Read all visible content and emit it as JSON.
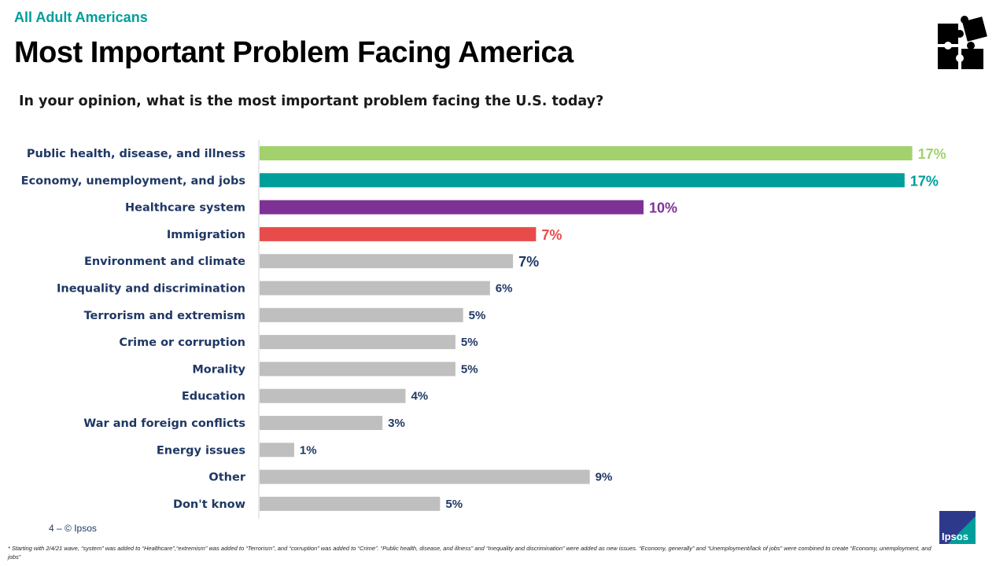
{
  "header": {
    "eyebrow": "All Adult Americans",
    "title": "Most Important Problem Facing America",
    "question": "In your opinion, what is the most important problem facing the U.S. today?"
  },
  "colors": {
    "green": "#a3d16e",
    "teal": "#009e9a",
    "purple": "#7e3295",
    "red": "#e84c4a",
    "gray": "#bfbfbf",
    "navy": "#1f3864"
  },
  "chart_data": {
    "type": "bar",
    "orientation": "horizontal",
    "categories": [
      "Public health, disease, and illness",
      "Economy, unemployment, and jobs",
      "Healthcare system",
      "Immigration",
      "Environment and climate",
      "Inequality and discrimination",
      "Terrorism and extremism",
      "Crime or corruption",
      "Morality",
      "Education",
      "War and foreign conflicts",
      "Energy issues",
      "Other",
      "Don't know"
    ],
    "values": [
      17.0,
      16.8,
      10.0,
      7.2,
      6.6,
      6.0,
      5.3,
      5.1,
      5.1,
      3.8,
      3.2,
      0.9,
      8.6,
      4.7
    ],
    "data_labels": [
      "17%",
      "17%",
      "10%",
      "7%",
      "7%",
      "6%",
      "5%",
      "5%",
      "5%",
      "4%",
      "3%",
      "1%",
      "9%",
      "5%"
    ],
    "bar_colors": [
      "#a3d16e",
      "#009e9a",
      "#7e3295",
      "#e84c4a",
      "#bfbfbf",
      "#bfbfbf",
      "#bfbfbf",
      "#bfbfbf",
      "#bfbfbf",
      "#bfbfbf",
      "#bfbfbf",
      "#bfbfbf",
      "#bfbfbf",
      "#bfbfbf"
    ],
    "label_colors": [
      "#a3d16e",
      "#009e9a",
      "#7e3295",
      "#e84c4a",
      "#1f3864",
      "#1f3864",
      "#1f3864",
      "#1f3864",
      "#1f3864",
      "#1f3864",
      "#1f3864",
      "#1f3864",
      "#1f3864",
      "#1f3864"
    ],
    "xlim": [
      0,
      20
    ],
    "grid": false
  },
  "footer": {
    "page": "4 –  © Ipsos",
    "logo": "Ipsos",
    "footnote": "* Starting with 2/4/21 wave, “system” was added to “Healthcare”,“extremism” was added to “Terrorism”, and “corruption” was added to “Crime”. “Public health, disease, and illness” and “Inequality and discrimination” were added as new issues. “Economy, generally” and “Unemployment/lack of jobs” were combined to create “Economy, unemployment, and jobs”"
  }
}
